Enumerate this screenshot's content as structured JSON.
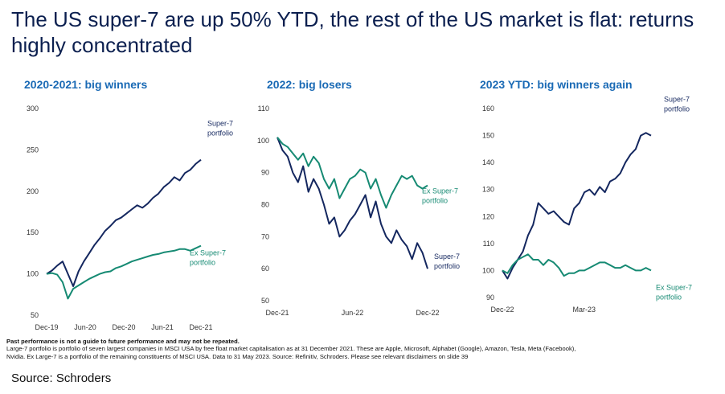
{
  "headline": "The US super-7 are up 50% YTD, the rest of the US market is flat: returns highly concentrated",
  "colors": {
    "super7": "#14275f",
    "ex_super7": "#168a73",
    "title": "#1a6ab5",
    "headline": "#0b1f4f"
  },
  "chart_data": [
    {
      "type": "line",
      "title": "2020-2021: big winners",
      "xlabel": "",
      "ylabel": "",
      "ylim": [
        50,
        300
      ],
      "yticks": [
        50,
        100,
        150,
        200,
        250,
        300
      ],
      "xticks": [
        "Dec-19",
        "Jun-20",
        "Dec-20",
        "Jun-21",
        "Dec-21"
      ],
      "grid": false,
      "series": [
        {
          "name": "Super-7 portfolio",
          "label_lines": [
            "Super-7",
            "portfolio"
          ],
          "color": "#14275f",
          "values": [
            100,
            104,
            110,
            115,
            100,
            85,
            103,
            115,
            125,
            135,
            143,
            152,
            158,
            165,
            168,
            173,
            178,
            183,
            180,
            185,
            192,
            197,
            205,
            210,
            217,
            213,
            222,
            226,
            233,
            238
          ]
        },
        {
          "name": "Ex Super-7 portfolio",
          "label_lines": [
            "Ex Super-7",
            "portfolio"
          ],
          "color": "#168a73",
          "values": [
            100,
            101,
            99,
            90,
            70,
            82,
            86,
            90,
            94,
            97,
            100,
            102,
            103,
            107,
            109,
            112,
            115,
            117,
            119,
            121,
            123,
            124,
            126,
            127,
            128,
            130,
            130,
            128,
            131,
            134
          ]
        }
      ]
    },
    {
      "type": "line",
      "title": "2022: big losers",
      "xlabel": "",
      "ylabel": "",
      "ylim": [
        50,
        110
      ],
      "yticks": [
        50,
        60,
        70,
        80,
        90,
        100,
        110
      ],
      "xticks": [
        "Dec-21",
        "Jun-22",
        "Dec-22"
      ],
      "grid": false,
      "series": [
        {
          "name": "Super-7 portfolio",
          "label_lines": [
            "Super-7",
            "portfolio"
          ],
          "color": "#14275f",
          "values": [
            101,
            97,
            95,
            90,
            87,
            92,
            84,
            88,
            85,
            80,
            74,
            76,
            70,
            72,
            75,
            77,
            80,
            83,
            76,
            81,
            74,
            70,
            68,
            72,
            69,
            67,
            63,
            68,
            65,
            60
          ]
        },
        {
          "name": "Ex Super-7 portfolio",
          "label_lines": [
            "Ex Super-7",
            "portfolio"
          ],
          "color": "#168a73",
          "values": [
            101,
            99,
            98,
            96,
            94,
            96,
            92,
            95,
            93,
            88,
            85,
            88,
            82,
            85,
            88,
            89,
            91,
            90,
            85,
            88,
            83,
            79,
            83,
            86,
            89,
            88,
            89,
            86,
            85,
            86
          ]
        }
      ]
    },
    {
      "type": "line",
      "title": "2023 YTD: big winners again",
      "xlabel": "",
      "ylabel": "",
      "ylim": [
        90,
        160
      ],
      "yticks": [
        90,
        100,
        110,
        120,
        130,
        140,
        150,
        160
      ],
      "xticks": [
        "Dec-22",
        "Mar-23"
      ],
      "grid": false,
      "series": [
        {
          "name": "Super-7 portfolio",
          "label_lines": [
            "Super-7",
            "portfolio"
          ],
          "color": "#14275f",
          "values": [
            100,
            97,
            101,
            104,
            107,
            113,
            117,
            125,
            123,
            121,
            122,
            120,
            118,
            117,
            123,
            125,
            129,
            130,
            128,
            131,
            129,
            133,
            134,
            136,
            140,
            143,
            145,
            150,
            151,
            150
          ]
        },
        {
          "name": "Ex Super-7 portfolio",
          "label_lines": [
            "Ex Super-7",
            "portfolio"
          ],
          "color": "#168a73",
          "values": [
            100,
            99,
            102,
            104,
            105,
            106,
            104,
            104,
            102,
            104,
            103,
            101,
            98,
            99,
            99,
            100,
            100,
            101,
            102,
            103,
            103,
            102,
            101,
            101,
            102,
            101,
            100,
            100,
            101,
            100
          ]
        }
      ]
    }
  ],
  "notes": {
    "disclaimer": "Past performance is not a guide to future performance and may not be repeated.",
    "line1": "Large-7 portfolio is portfolio of seven largest companies in MSCI USA by free float market capitalisation as at 31 December 2021. These are Apple, Microsoft, Alphabet (Google), Amazon, Tesla, Meta (Facebook),",
    "line2": "Nvidia. Ex Large-7 is a portfolio of the remaining constituents of MSCI USA. Data to 31 May 2023. Source: Refinitiv, Schroders. Please see relevant disclaimers on slide 39"
  },
  "source": "Source: Schroders"
}
